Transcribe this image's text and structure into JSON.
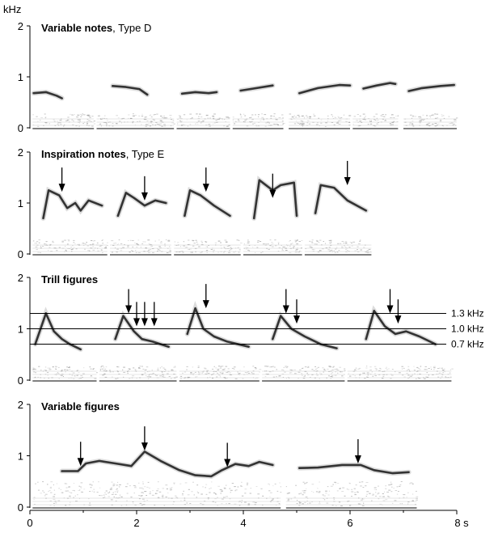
{
  "y_unit": "kHz",
  "x_unit": "s",
  "x_ticks": [
    "0",
    "2",
    "4",
    "6",
    "8 s"
  ],
  "y_ticks": [
    "0",
    "1",
    "2"
  ],
  "panels": [
    {
      "title": "Variable notes",
      "type": "Type D"
    },
    {
      "title": "Inspiration notes",
      "type": "Type E"
    },
    {
      "title": "Trill figures",
      "type": ""
    },
    {
      "title": "Variable figures",
      "type": ""
    }
  ],
  "reference_lines": [
    {
      "label": "1.3 kHz",
      "khz": 1.3
    },
    {
      "label": "1.0 kHz",
      "khz": 1.0
    },
    {
      "label": "0.7 kHz",
      "khz": 0.7
    }
  ],
  "colors": {
    "ink": "#000000",
    "trace": "#333333",
    "noise": "#9a9a9a"
  }
}
